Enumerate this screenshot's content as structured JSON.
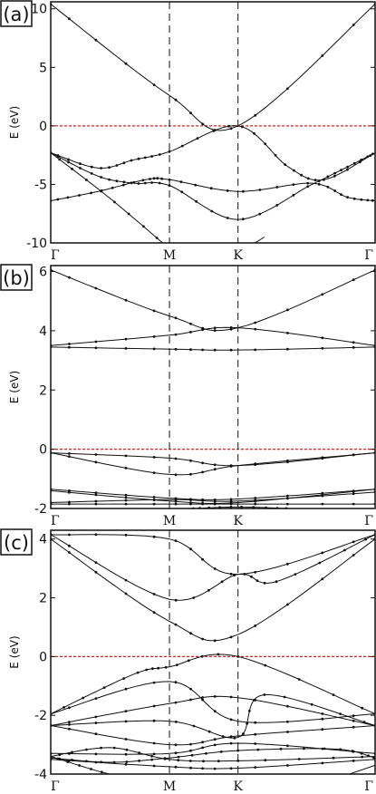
{
  "chart_data": [
    {
      "type": "line",
      "panel_label": "(a)",
      "ylabel": "E (eV)",
      "ylim": [
        -10,
        10.6
      ],
      "yticks": [
        10,
        5,
        0,
        -5,
        -10
      ],
      "xticks": [
        "Γ",
        "M",
        "K",
        "Γ"
      ],
      "k_path": [
        0,
        0.5,
        0.7887,
        1.366
      ],
      "fermi_level": 0,
      "series": [
        {
          "x": [
            0,
            0.5,
            0.7887,
            1.366
          ],
          "y": [
            10.4,
            2.6,
            0.0,
            10.4
          ]
        },
        {
          "x": [
            0,
            0.2,
            0.35,
            0.5,
            0.7887,
            1.0,
            1.15,
            1.366
          ],
          "y": [
            -2.3,
            -3.6,
            -2.9,
            -2.2,
            0.0,
            -3.5,
            -4.6,
            -2.3
          ]
        },
        {
          "x": [
            0,
            0.2,
            0.35,
            0.5,
            0.7887,
            1.1,
            1.25,
            1.366
          ],
          "y": [
            -2.3,
            -4.3,
            -4.9,
            -5.1,
            -8.0,
            -5.0,
            -3.5,
            -2.3
          ]
        },
        {
          "x": [
            0,
            0.2,
            0.4,
            0.5,
            0.7887,
            1.1,
            1.25,
            1.366
          ],
          "y": [
            -6.4,
            -5.6,
            -4.6,
            -4.6,
            -5.6,
            -4.9,
            -6.1,
            -6.4
          ]
        },
        {
          "x": [
            0,
            0.25,
            0.5
          ],
          "y": [
            -2.3,
            -6.2,
            -10.5
          ]
        },
        {
          "x": [
            0.82,
            0.9
          ],
          "y": [
            -10.5,
            -9.5
          ]
        }
      ]
    },
    {
      "type": "line",
      "panel_label": "(b)",
      "ylabel": "E (eV)",
      "ylim": [
        -2,
        6.2
      ],
      "yticks": [
        6,
        4,
        2,
        0,
        -2
      ],
      "xticks": [
        "Γ",
        "M",
        "K",
        "Γ"
      ],
      "k_path": [
        0,
        0.5,
        0.7887,
        1.366
      ],
      "fermi_level": 0,
      "series": [
        {
          "x": [
            0,
            0.5,
            0.7887,
            1.366
          ],
          "y": [
            6.05,
            4.5,
            4.1,
            6.05
          ]
        },
        {
          "x": [
            0,
            0.5,
            0.7887,
            1.366
          ],
          "y": [
            3.5,
            3.85,
            4.1,
            3.5
          ]
        },
        {
          "x": [
            0,
            0.5,
            0.7887,
            1.366
          ],
          "y": [
            3.45,
            3.38,
            3.35,
            3.45
          ]
        },
        {
          "x": [
            0,
            0.5,
            0.7887,
            1.366
          ],
          "y": [
            -0.12,
            -0.3,
            -0.55,
            -0.12
          ]
        },
        {
          "x": [
            0,
            0.5,
            0.7887,
            1.366
          ],
          "y": [
            -0.12,
            -0.85,
            -0.55,
            -0.12
          ]
        },
        {
          "x": [
            0,
            0.5,
            0.7887,
            1.366
          ],
          "y": [
            -1.35,
            -1.65,
            -1.68,
            -1.35
          ]
        },
        {
          "x": [
            0,
            0.5,
            0.7887,
            1.366
          ],
          "y": [
            -1.8,
            -1.7,
            -1.75,
            -1.45
          ]
        },
        {
          "x": [
            0,
            0.5,
            0.7887,
            1.366
          ],
          "y": [
            -1.85,
            -1.85,
            -1.85,
            -1.85
          ]
        },
        {
          "x": [
            0,
            0.5,
            0.7887,
            1.366
          ],
          "y": [
            -1.4,
            -1.75,
            -1.8,
            -1.35
          ]
        },
        {
          "x": [
            0.6,
            0.7887,
            1.0
          ],
          "y": [
            -2.0,
            -1.95,
            -2.0
          ]
        }
      ]
    },
    {
      "type": "line",
      "panel_label": "(c)",
      "ylabel": "E (eV)",
      "ylim": [
        -4,
        4.3
      ],
      "yticks": [
        4,
        2,
        0,
        -2,
        -4
      ],
      "xticks": [
        "Γ",
        "M",
        "K",
        "Γ"
      ],
      "k_path": [
        0,
        0.5,
        0.7887,
        1.366
      ],
      "fermi_level": 0,
      "series": [
        {
          "x": [
            0,
            0.5,
            0.7887,
            0.95,
            1.366
          ],
          "y": [
            4.15,
            1.95,
            2.8,
            2.55,
            4.15
          ]
        },
        {
          "x": [
            0,
            0.5,
            0.7887,
            1.366
          ],
          "y": [
            4.15,
            4.0,
            2.8,
            4.15
          ]
        },
        {
          "x": [
            0,
            0.5,
            0.7887,
            1.366
          ],
          "y": [
            4.0,
            1.2,
            0.75,
            4.0
          ]
        },
        {
          "x": [
            0,
            0.35,
            0.5,
            0.7887,
            1.366
          ],
          "y": [
            -1.95,
            -0.6,
            -0.35,
            0.0,
            -1.95
          ]
        },
        {
          "x": [
            0,
            0.5,
            0.7887,
            1.366
          ],
          "y": [
            -1.95,
            -0.85,
            -2.2,
            -1.95
          ]
        },
        {
          "x": [
            0,
            0.5,
            0.7887,
            1.366
          ],
          "y": [
            -2.35,
            -1.6,
            -1.4,
            -2.35
          ]
        },
        {
          "x": [
            0,
            0.5,
            0.7887,
            0.9,
            1.366
          ],
          "y": [
            -2.35,
            -2.2,
            -2.75,
            -1.3,
            -2.35
          ]
        },
        {
          "x": [
            0,
            0.5,
            0.7887,
            1.366
          ],
          "y": [
            -2.35,
            -3.0,
            -2.7,
            -2.35
          ]
        },
        {
          "x": [
            0,
            0.5,
            0.7887,
            1.366
          ],
          "y": [
            -3.3,
            -3.3,
            -2.95,
            -3.3
          ]
        },
        {
          "x": [
            0,
            0.25,
            0.5,
            0.7887,
            1.366
          ],
          "y": [
            -3.4,
            -3.1,
            -3.5,
            -3.55,
            -3.4
          ]
        },
        {
          "x": [
            0,
            0.5,
            0.7887,
            1.366
          ],
          "y": [
            -3.5,
            -3.75,
            -3.8,
            -3.5
          ]
        },
        {
          "x": [
            0,
            0.25,
            0.5,
            0.7887,
            1.2,
            1.366
          ],
          "y": [
            -3.45,
            -3.6,
            -3.45,
            -3.2,
            -3.15,
            -3.45
          ]
        },
        {
          "x": [
            0,
            0.2,
            0.4
          ],
          "y": [
            -3.4,
            -3.9,
            -4.3
          ]
        },
        {
          "x": [
            1.15,
            1.366
          ],
          "y": [
            -4.3,
            -3.7
          ]
        }
      ]
    }
  ]
}
